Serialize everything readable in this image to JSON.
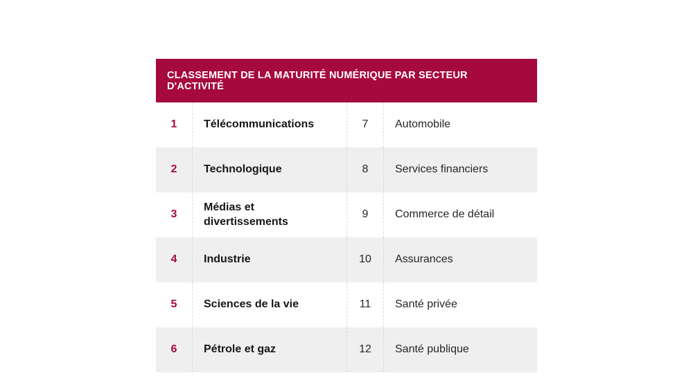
{
  "table": {
    "title": "CLASSEMENT DE LA MATURITÉ NUMÉRIQUE PAR SECTEUR D'ACTIVITÉ",
    "colors": {
      "header_bg": "#a6093d",
      "rank_color": "#a6093d",
      "header_text": "#ffffff",
      "row_bg": "#ffffff",
      "row_alt_bg": "#efefef",
      "text_bold": "#161616",
      "text_regular": "#262626",
      "divider": "#d8d8d8",
      "page_bg": "#ffffff"
    },
    "rows": [
      {
        "left_rank": "1",
        "left_sector": "Télécommunications",
        "right_rank": "7",
        "right_sector": "Automobile"
      },
      {
        "left_rank": "2",
        "left_sector": "Technologique",
        "right_rank": "8",
        "right_sector": "Services financiers"
      },
      {
        "left_rank": "3",
        "left_sector": "Médias et divertissements",
        "right_rank": "9",
        "right_sector": "Commerce de détail"
      },
      {
        "left_rank": "4",
        "left_sector": "Industrie",
        "right_rank": "10",
        "right_sector": "Assurances"
      },
      {
        "left_rank": "5",
        "left_sector": "Sciences de la vie",
        "right_rank": "11",
        "right_sector": "Santé privée"
      },
      {
        "left_rank": "6",
        "left_sector": "Pétrole et gaz",
        "right_rank": "12",
        "right_sector": "Santé publique"
      }
    ]
  }
}
